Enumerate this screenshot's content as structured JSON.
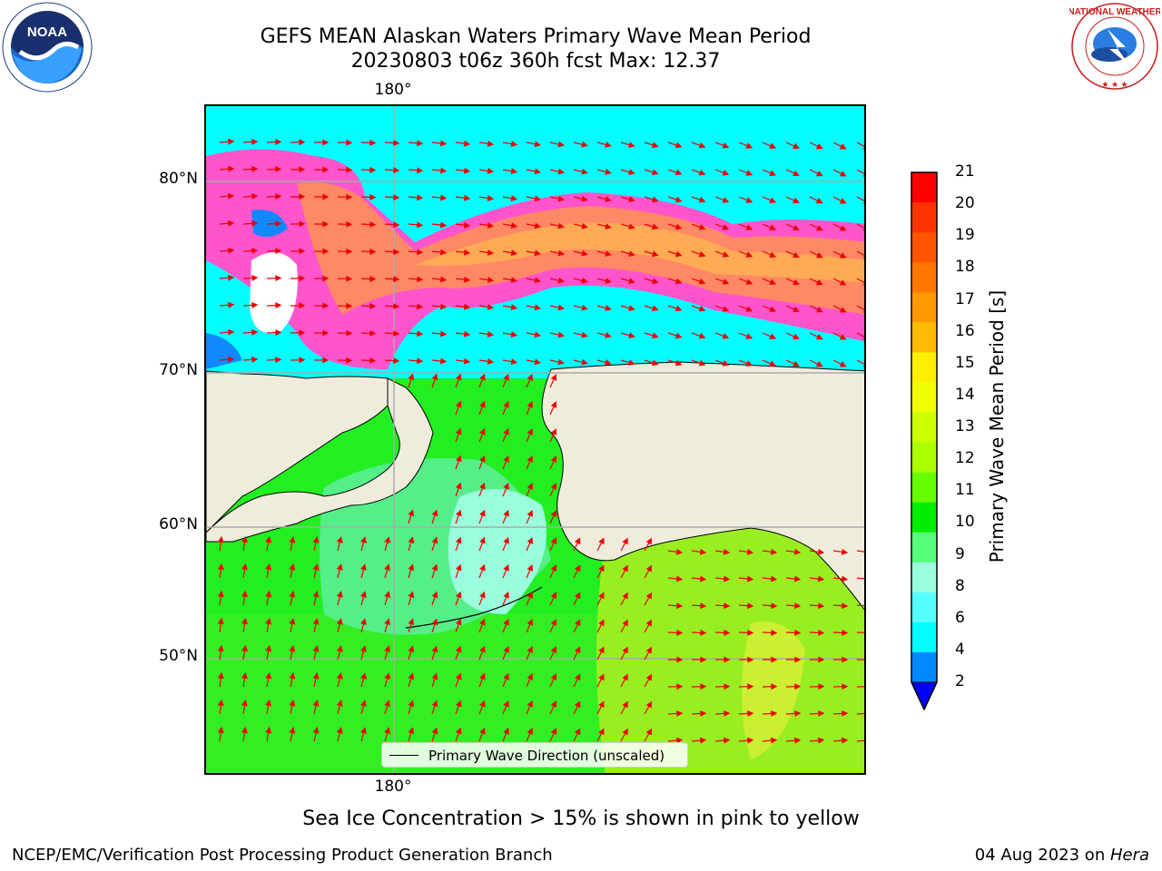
{
  "title": {
    "line1": "GEFS MEAN Alaskan Waters Primary Wave Mean Period",
    "line2": "20230803 t06z 360h fcst   Max: 12.37"
  },
  "logos": {
    "left": "noaa-logo",
    "left_text": "NOAA",
    "right": "nws-logo",
    "right_text": "NATIONAL WEATHER SERVICE"
  },
  "map": {
    "lat_labels": [
      "80°N",
      "70°N",
      "60°N",
      "50°N"
    ],
    "lon_labels": {
      "top": "180°",
      "bottom": "180°"
    },
    "land_color": "#efecdc",
    "ocean_gridlines": true
  },
  "legend": {
    "label": "Primary Wave Direction (unscaled)"
  },
  "colorbar": {
    "label": "Primary Wave Mean Period [s]",
    "ticks": [
      "21",
      "20",
      "19",
      "18",
      "17",
      "16",
      "15",
      "14",
      "13",
      "12",
      "11",
      "10",
      "9",
      "8",
      "6",
      "4",
      "2"
    ],
    "colors": [
      "#ff0000",
      "#ff3300",
      "#ff5500",
      "#ff7700",
      "#ff9900",
      "#ffbb00",
      "#ffee00",
      "#f0ff00",
      "#ccff00",
      "#aaff00",
      "#66ff00",
      "#00ee00",
      "#55ff77",
      "#99ffdd",
      "#55ffff",
      "#00ffff",
      "#0088ff"
    ],
    "extend_color": "#0000ff"
  },
  "subtitle": "Sea Ice Concentration > 15% is shown in pink to yellow",
  "footer": {
    "left": "NCEP/EMC/Verification Post Processing Product Generation Branch",
    "right_date": "04 Aug 2023 on ",
    "right_host": "Hera"
  }
}
